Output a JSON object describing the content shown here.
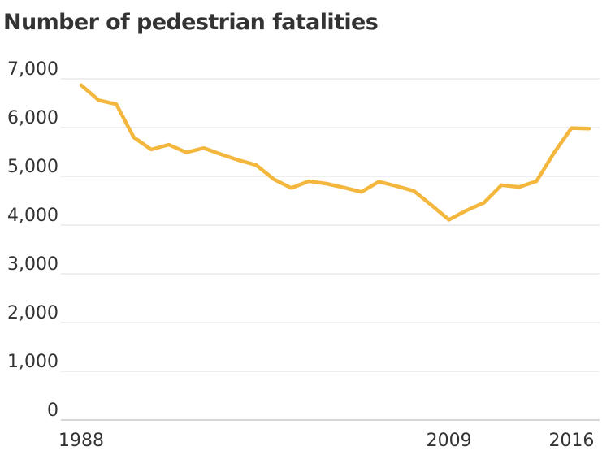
{
  "chart_data": {
    "type": "line",
    "title": "Number of pedestrian fatalities",
    "xlabel": "",
    "ylabel": "",
    "ylim": [
      0,
      7000
    ],
    "yticks": [
      0,
      1000,
      2000,
      3000,
      4000,
      5000,
      6000,
      7000
    ],
    "ytick_labels": [
      "0",
      "1,000",
      "2,000",
      "3,000",
      "4,000",
      "5,000",
      "6,000",
      "7,000"
    ],
    "xlim": [
      1988,
      2017
    ],
    "xticks": [
      1988,
      2009,
      2016
    ],
    "xtick_labels": [
      "1988",
      "2009",
      "2016"
    ],
    "grid": true,
    "color": "#f4b73e",
    "series": [
      {
        "x": [
          1988,
          1989,
          1990,
          1991,
          1992,
          1993,
          1994,
          1995,
          1996,
          1997,
          1998,
          1999,
          2000,
          2001,
          2002,
          2003,
          2004,
          2005,
          2006,
          2007,
          2008,
          2009,
          2010,
          2011,
          2012,
          2013,
          2014,
          2015,
          2016,
          2017
        ],
        "values": [
          6870,
          6560,
          6480,
          5800,
          5550,
          5650,
          5490,
          5580,
          5450,
          5330,
          5230,
          4940,
          4760,
          4900,
          4850,
          4770,
          4680,
          4890,
          4800,
          4700,
          4410,
          4110,
          4300,
          4460,
          4820,
          4780,
          4900,
          5480,
          5990,
          5980
        ]
      }
    ]
  }
}
